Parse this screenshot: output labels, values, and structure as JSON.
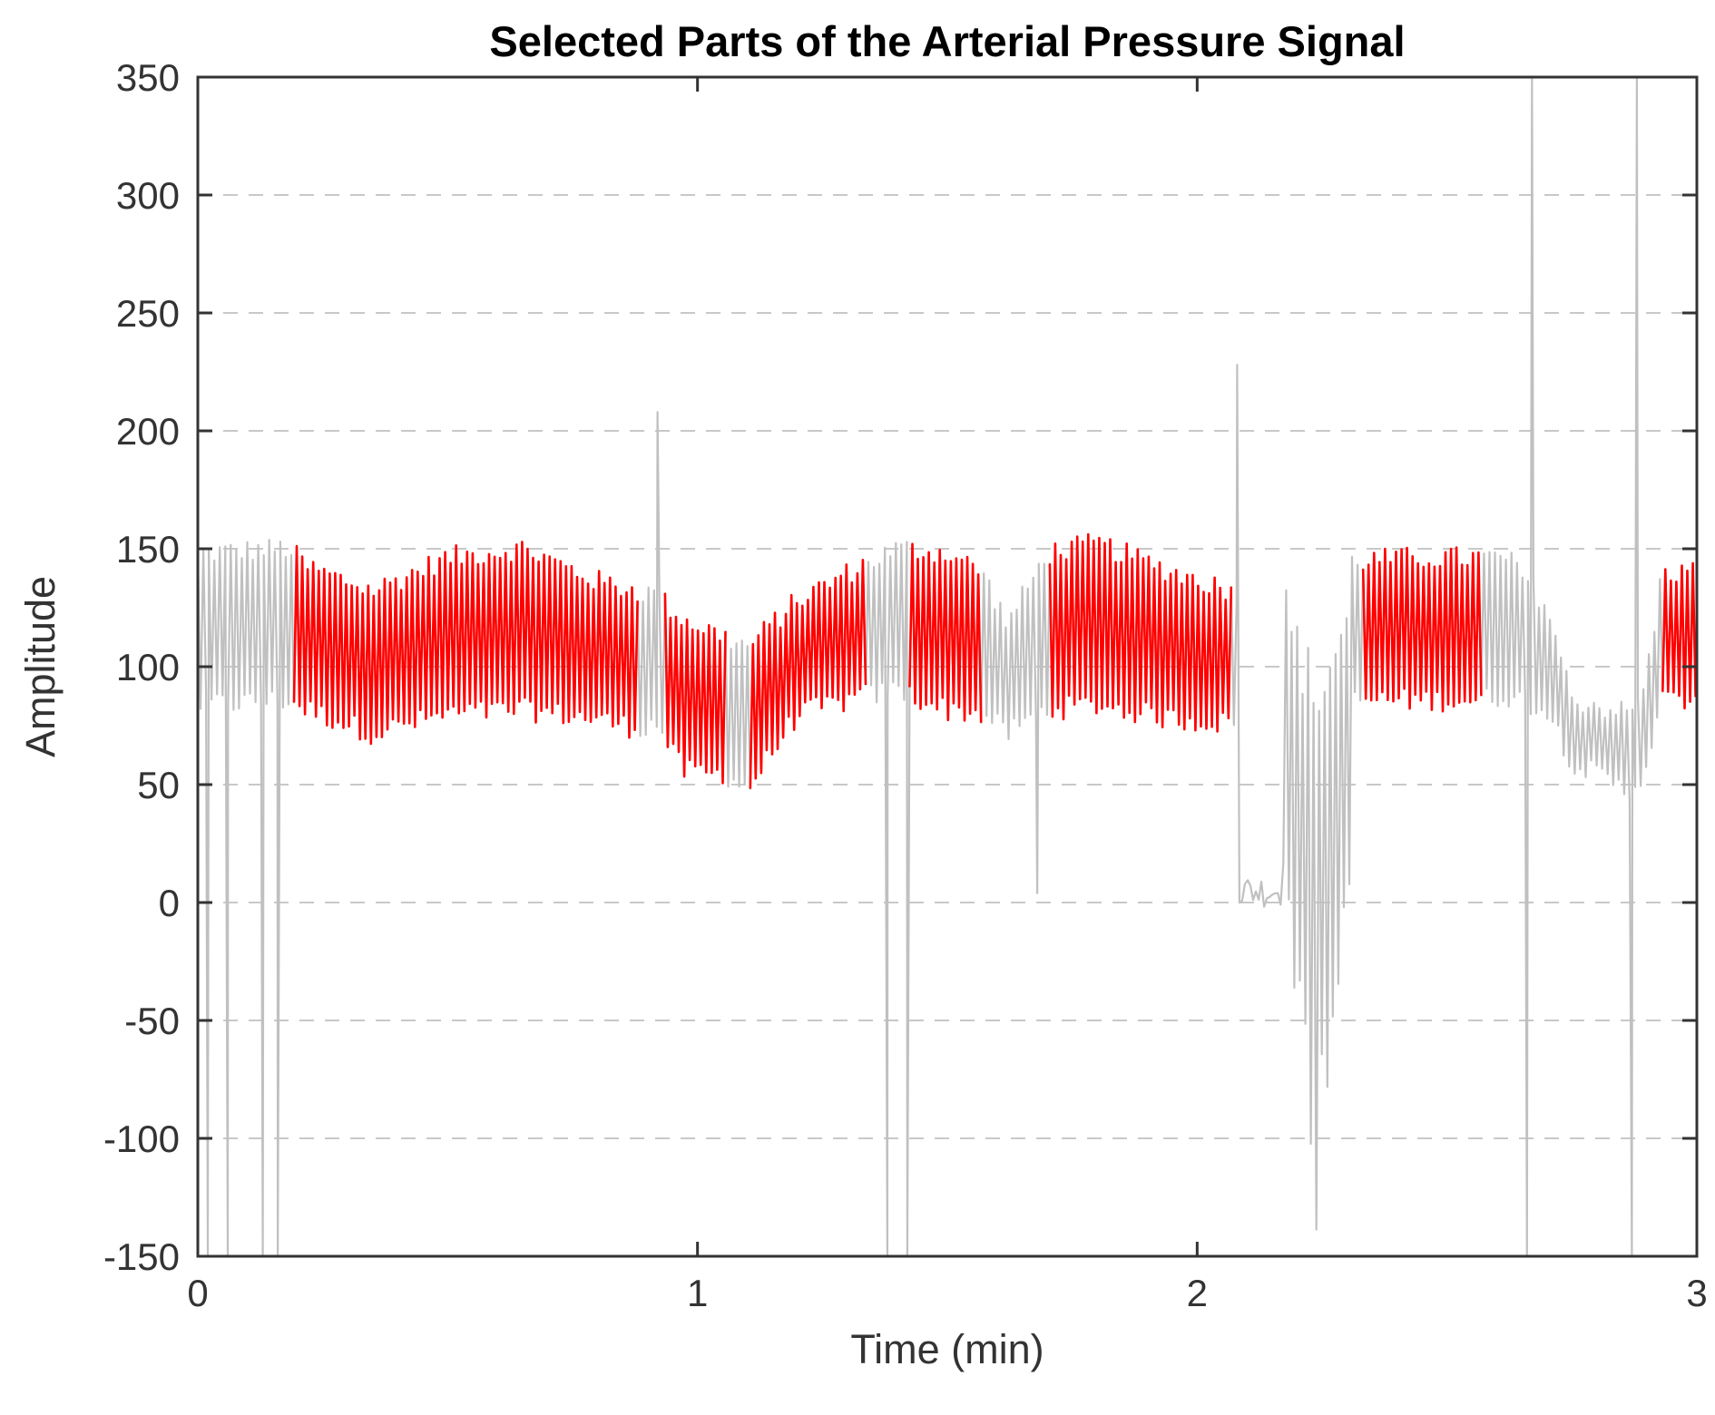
{
  "chart_data": {
    "type": "line",
    "title": "Selected Parts of the Arterial Pressure Signal",
    "xlabel": "Time (min)",
    "ylabel": "Amplitude",
    "xlim": [
      0,
      3
    ],
    "ylim": [
      -150,
      350
    ],
    "xticks": [
      "0",
      "1",
      "2",
      "3"
    ],
    "yticks": [
      "350",
      "300",
      "250",
      "200",
      "150",
      "100",
      "50",
      "0",
      "-50",
      "-100",
      "-150"
    ],
    "grid": "horizontal-dashed",
    "colors": {
      "full_signal": "#c0c0c0",
      "selected": "#ff0000",
      "grid": "#c8c8c8",
      "axis": "#333333"
    },
    "selected_segments_min": [
      [
        0.19,
        0.88
      ],
      [
        0.93,
        1.06
      ],
      [
        1.1,
        1.34
      ],
      [
        1.42,
        1.57
      ],
      [
        1.7,
        2.07
      ],
      [
        2.33,
        2.57
      ],
      [
        2.93,
        3.0
      ]
    ],
    "artifacts": {
      "upward_spikes": [
        {
          "t": 0.92,
          "y": 208
        },
        {
          "t": 2.08,
          "y": 228
        },
        {
          "t": 2.67,
          "y": 350
        },
        {
          "t": 2.88,
          "y": 350
        }
      ],
      "downward_spikes": [
        {
          "t": 0.02,
          "y": -150
        },
        {
          "t": 0.06,
          "y": -150
        },
        {
          "t": 0.13,
          "y": -150
        },
        {
          "t": 0.16,
          "y": -150
        },
        {
          "t": 1.38,
          "y": -150
        },
        {
          "t": 1.42,
          "y": -150
        },
        {
          "t": 1.68,
          "y": 4
        },
        {
          "t": 2.66,
          "y": -150
        },
        {
          "t": 2.87,
          "y": -150
        }
      ],
      "flat_low_interval": {
        "t": [
          2.08,
          2.17
        ],
        "y": 5
      },
      "noisy_drop_interval": {
        "t": [
          2.17,
          2.31
        ],
        "y_min": -145
      },
      "drift_interval": {
        "t": [
          2.71,
          2.87
        ],
        "y_low": 48
      }
    }
  }
}
